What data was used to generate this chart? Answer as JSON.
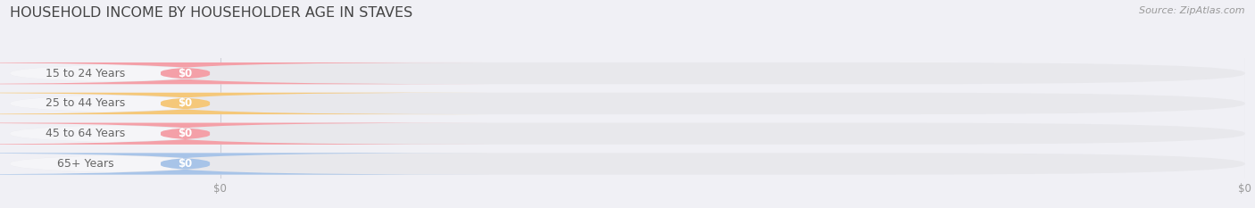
{
  "title": "HOUSEHOLD INCOME BY HOUSEHOLDER AGE IN STAVES",
  "source_text": "Source: ZipAtlas.com",
  "categories": [
    "15 to 24 Years",
    "25 to 44 Years",
    "45 to 64 Years",
    "65+ Years"
  ],
  "values": [
    0,
    0,
    0,
    0
  ],
  "bar_colors": [
    "#f4a0a8",
    "#f5c87a",
    "#f4a0a8",
    "#a8c4e8"
  ],
  "background_color": "#f0f0f5",
  "track_color": "#e8e8ec",
  "label_bg_color": "#f5f5f8",
  "grid_color": "#d0d0d8",
  "title_color": "#444444",
  "label_color": "#666666",
  "tick_color": "#999999",
  "source_color": "#999999",
  "title_fontsize": 11.5,
  "label_fontsize": 9.0,
  "badge_fontsize": 8.5,
  "tick_fontsize": 8.5,
  "source_fontsize": 8.0,
  "fig_width": 14.06,
  "fig_height": 2.33
}
